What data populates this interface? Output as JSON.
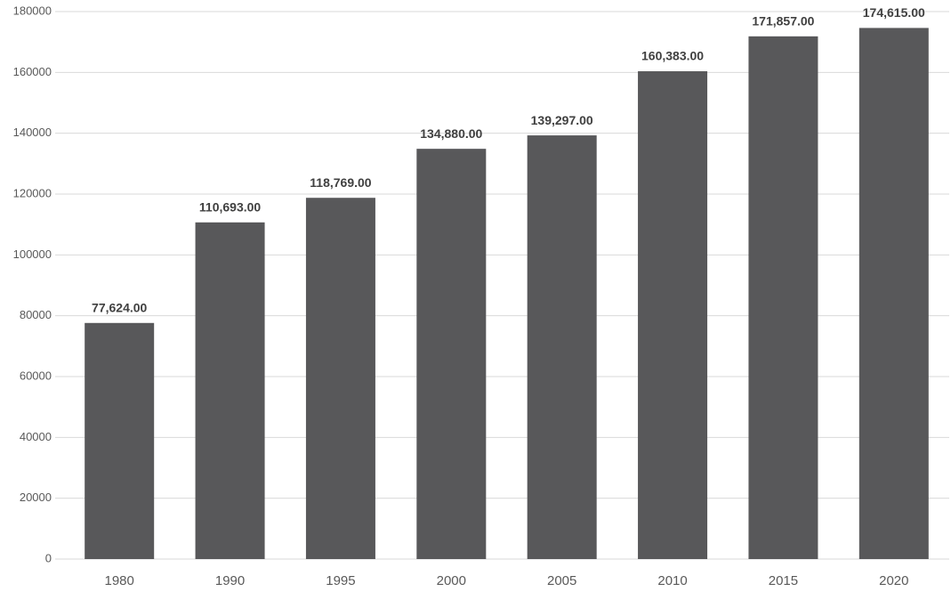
{
  "chart_data": {
    "type": "bar",
    "categories": [
      "1980",
      "1990",
      "1995",
      "2000",
      "2005",
      "2010",
      "2015",
      "2020"
    ],
    "values": [
      77624,
      110693,
      118769,
      134880,
      139297,
      160383,
      171857,
      174615
    ],
    "value_labels": [
      "77,624.00",
      "110,693.00",
      "118,769.00",
      "134,880.00",
      "139,297.00",
      "160,383.00",
      "171,857.00",
      "174,615.00"
    ],
    "color": "#58585a",
    "ylim": [
      0,
      180000
    ],
    "yticks": [
      0,
      20000,
      40000,
      60000,
      80000,
      100000,
      120000,
      140000,
      160000,
      180000
    ],
    "grid": true
  }
}
